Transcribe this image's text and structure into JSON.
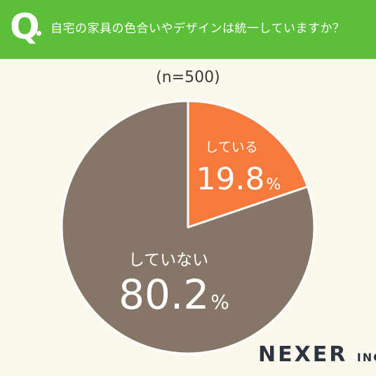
{
  "header": {
    "q_letter": "Q",
    "question": "自宅の家具の色合いやデザインは統一していますか？",
    "bg_color": "#5cbf3a"
  },
  "sample_size": "(n=500)",
  "chart_data": {
    "type": "pie",
    "title": "自宅の家具の色合いやデザインは統一していますか？",
    "slices": [
      {
        "label": "している",
        "value": 19.8,
        "display": "19.8",
        "unit": "%",
        "color": "#f67a3c"
      },
      {
        "label": "していない",
        "value": 80.2,
        "display": "80.2",
        "unit": "%",
        "color": "#857668"
      }
    ],
    "start_angle": "top",
    "direction": "clockwise",
    "labels_inside": true,
    "legend": "none"
  },
  "logo": {
    "main": "NEXER",
    "sub": "INC."
  }
}
